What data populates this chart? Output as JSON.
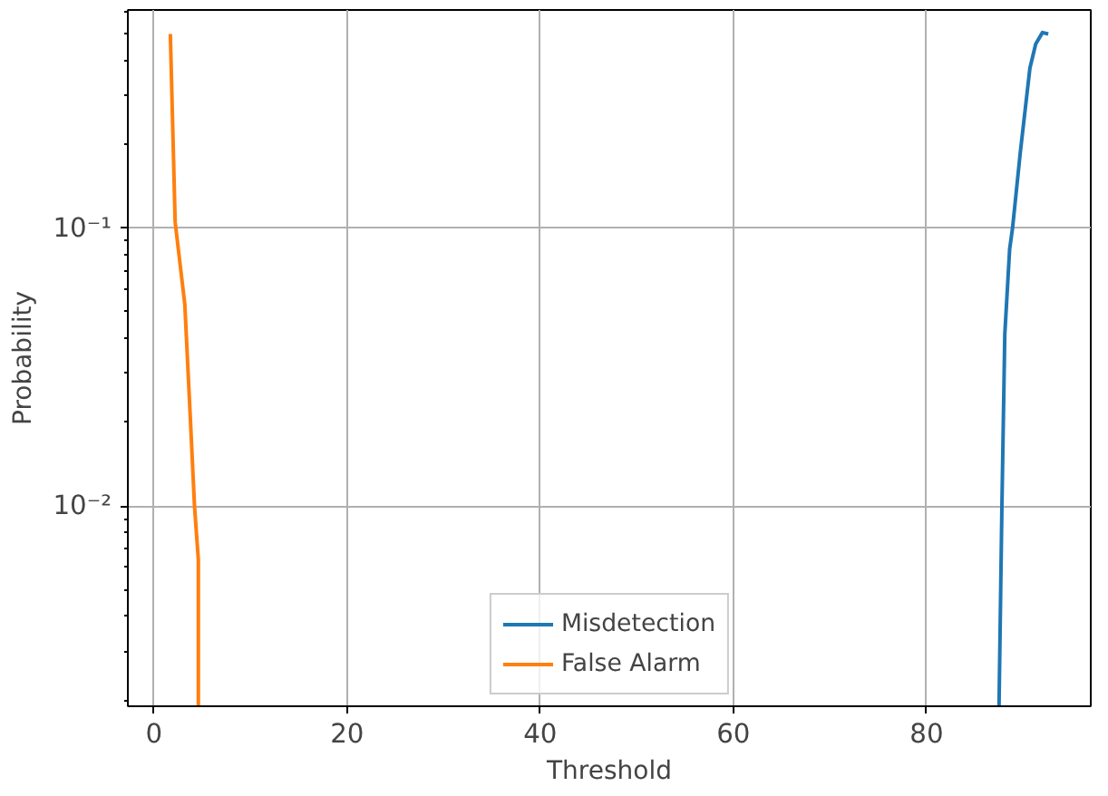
{
  "chart_data": {
    "type": "line",
    "xlabel": "Threshold",
    "ylabel": "Probability",
    "log": "y",
    "grid": true,
    "legend": "bottom",
    "line_style": "solid",
    "marker": "none",
    "xlim": [
      -2.7,
      97
    ],
    "xticks": [
      0,
      20,
      40,
      60,
      80
    ],
    "ylim": [
      0.0019,
      0.61
    ],
    "yticks": [
      {
        "value": 0.1,
        "label": "10⁻¹"
      },
      {
        "value": 0.01,
        "label": "10⁻²"
      }
    ],
    "series": [
      {
        "name": "Misdetection",
        "color": "#1f77b4",
        "x": [
          87.5,
          87.8,
          88.1,
          88.6,
          88.9,
          89.7,
          90.7,
          91.3,
          92.0,
          92.6
        ],
        "values": [
          0.0019,
          0.01,
          0.0416,
          0.084,
          0.1,
          0.187,
          0.377,
          0.46,
          0.506,
          0.5
        ]
      },
      {
        "name": "False Alarm",
        "color": "#ff7f0e",
        "x": [
          1.7,
          2.2,
          3.2,
          3.8,
          4.2,
          4.6,
          4.6
        ],
        "values": [
          0.5,
          0.105,
          0.053,
          0.0197,
          0.01,
          0.0064,
          0.0019
        ]
      }
    ]
  }
}
